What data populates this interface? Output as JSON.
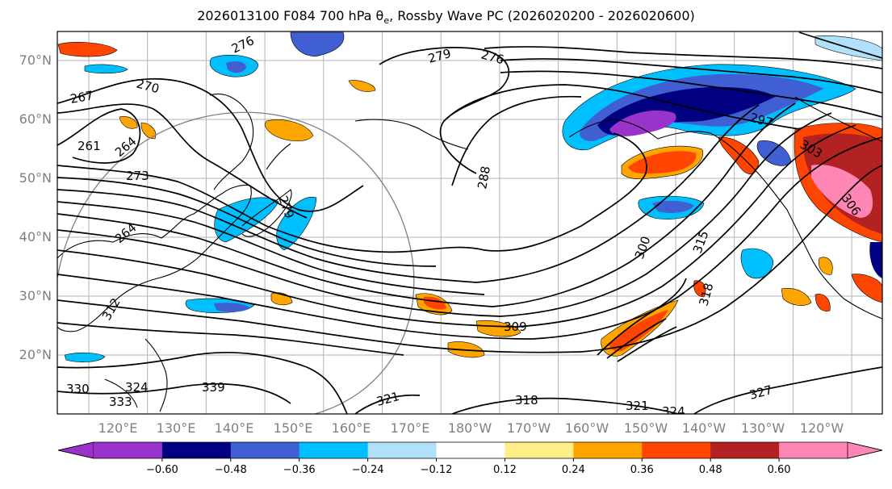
{
  "title": {
    "prefix": "2026013100 F084 700 hPa θ",
    "subscript": "e",
    "suffix": ", Rossby Wave PC (2026020200 - 2026020600)"
  },
  "map": {
    "lat_labels": [
      "70°N",
      "60°N",
      "50°N",
      "40°N",
      "30°N",
      "20°N"
    ],
    "lon_labels": [
      "120°E",
      "130°E",
      "140°E",
      "150°E",
      "160°E",
      "170°E",
      "180°W",
      "170°W",
      "160°W",
      "150°W",
      "140°W",
      "130°W",
      "120°W"
    ],
    "contour_labels": [
      "276",
      "279",
      "276",
      "270",
      "267",
      "261",
      "264",
      "273",
      "279",
      "288",
      "297",
      "303",
      "306",
      "300",
      "315",
      "318",
      "309",
      "312",
      "324",
      "330",
      "333",
      "339",
      "321",
      "327",
      "318",
      "321",
      "324",
      "264"
    ]
  },
  "colorbar": {
    "colors": [
      "#9a33cc",
      "#000080",
      "#3f5fd2",
      "#00bfff",
      "#b0e0fa",
      "#ffffff",
      "#ffee88",
      "#ffa500",
      "#ff4500",
      "#b22222",
      "#ff85b5"
    ],
    "ticks": [
      "−0.60",
      "−0.48",
      "−0.36",
      "−0.24",
      "−0.12",
      "0.12",
      "0.24",
      "0.36",
      "0.48",
      "0.60"
    ]
  }
}
